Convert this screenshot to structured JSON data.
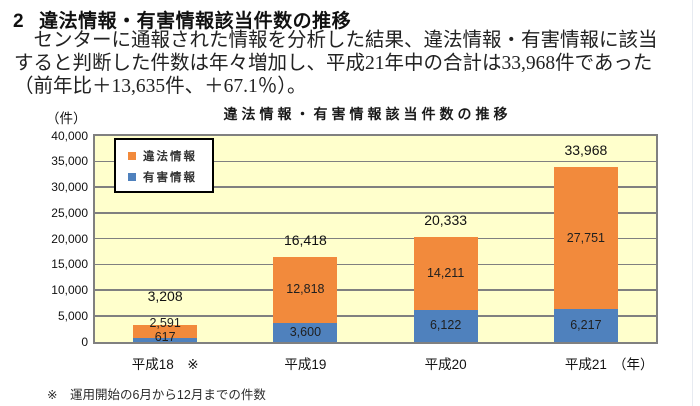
{
  "heading": {
    "number": "2",
    "title": "違法情報・有害情報該当件数の推移"
  },
  "paragraph": {
    "lines": [
      "　センターに通報された情報を分析した結果、違法情報・有害情報に該当",
      "すると判断した件数は年々増加し、平成21年中の合計は33,968件であった",
      "（前年比＋13,635件、＋67.1％）。"
    ]
  },
  "footnote": "※　運用開始の6月から12月までの件数",
  "chart_data": {
    "type": "bar",
    "subtype": "stacked",
    "title": "違法情報・有害情報該当件数の推移",
    "unit_label": "（件）",
    "x_suffix": "（年）",
    "categories": [
      "平成18　※",
      "平成19",
      "平成20",
      "平成21"
    ],
    "series": [
      {
        "name": "違法情報",
        "color": "#F28A3C",
        "values": [
          2591,
          12818,
          14211,
          27751
        ]
      },
      {
        "name": "有害情報",
        "color": "#4F81BD",
        "values": [
          617,
          3600,
          6122,
          6217
        ]
      }
    ],
    "totals": [
      3208,
      16418,
      20333,
      33968
    ],
    "ylim": [
      0,
      40000
    ],
    "ytick_step": 5000,
    "grid": true,
    "legend_position": "top-left-inside",
    "plot_bg": "#FFFFCC",
    "gridline_color": "#808080"
  }
}
